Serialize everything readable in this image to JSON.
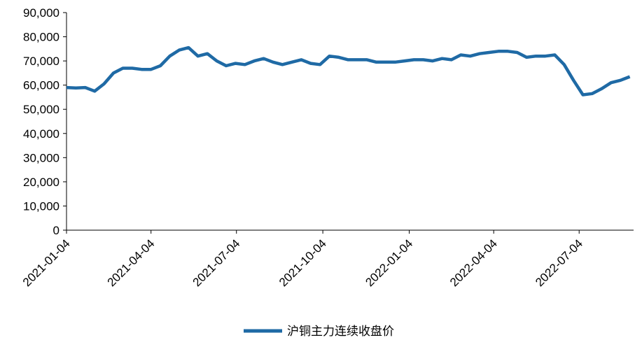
{
  "chart_data": {
    "type": "line",
    "x": [
      "2021-01-04",
      "2021-01-14",
      "2021-01-24",
      "2021-02-03",
      "2021-02-13",
      "2021-02-23",
      "2021-03-05",
      "2021-03-15",
      "2021-03-25",
      "2021-04-04",
      "2021-04-14",
      "2021-04-24",
      "2021-05-04",
      "2021-05-14",
      "2021-05-24",
      "2021-06-03",
      "2021-06-13",
      "2021-06-23",
      "2021-07-03",
      "2021-07-13",
      "2021-07-23",
      "2021-08-02",
      "2021-08-12",
      "2021-08-22",
      "2021-09-01",
      "2021-09-11",
      "2021-09-21",
      "2021-10-01",
      "2021-10-11",
      "2021-10-21",
      "2021-10-31",
      "2021-11-10",
      "2021-11-20",
      "2021-11-30",
      "2021-12-10",
      "2021-12-20",
      "2021-12-30",
      "2022-01-09",
      "2022-01-19",
      "2022-01-29",
      "2022-02-08",
      "2022-02-18",
      "2022-02-28",
      "2022-03-10",
      "2022-03-20",
      "2022-03-30",
      "2022-04-09",
      "2022-04-19",
      "2022-04-29",
      "2022-05-09",
      "2022-05-19",
      "2022-05-29",
      "2022-06-08",
      "2022-06-18",
      "2022-06-28",
      "2022-07-08",
      "2022-07-18",
      "2022-07-28",
      "2022-08-07",
      "2022-08-17",
      "2022-08-27"
    ],
    "series": [
      {
        "name": "沪铜主力连续收盘价",
        "color": "#1f6aa5",
        "values": [
          59000,
          58800,
          59000,
          57500,
          60500,
          65000,
          67000,
          67000,
          66500,
          66500,
          68000,
          72000,
          74500,
          75500,
          72000,
          73000,
          70000,
          68000,
          69000,
          68500,
          70000,
          71000,
          69500,
          68500,
          69500,
          70500,
          69000,
          68500,
          72000,
          71500,
          70500,
          70500,
          70500,
          69500,
          69500,
          69500,
          70000,
          70500,
          70500,
          70000,
          71000,
          70500,
          72500,
          72000,
          73000,
          73500,
          74000,
          74000,
          73500,
          71500,
          72000,
          72000,
          72500,
          68500,
          62000,
          56000,
          56500,
          58500,
          61000,
          62000,
          63500
        ]
      }
    ],
    "xlim": [
      "2021-01-04",
      "2022-08-31"
    ],
    "xticks": [
      "2021-01-04",
      "2021-04-04",
      "2021-07-04",
      "2021-10-04",
      "2022-01-04",
      "2022-04-04",
      "2022-07-04"
    ],
    "ylim": [
      0,
      90000
    ],
    "yticks": [
      0,
      {
        "value": 10000,
        "label": "10,000"
      },
      {
        "value": 20000,
        "label": "20,000"
      },
      {
        "value": 30000,
        "label": "30,000"
      },
      {
        "value": 40000,
        "label": "40,000"
      },
      {
        "value": 50000,
        "label": "50,000"
      },
      {
        "value": 60000,
        "label": "60,000"
      },
      {
        "value": 70000,
        "label": "70,000"
      },
      {
        "value": 80000,
        "label": "80,000"
      },
      {
        "value": 90000,
        "label": "90,000"
      }
    ],
    "grid": false,
    "legend": "bottom"
  }
}
